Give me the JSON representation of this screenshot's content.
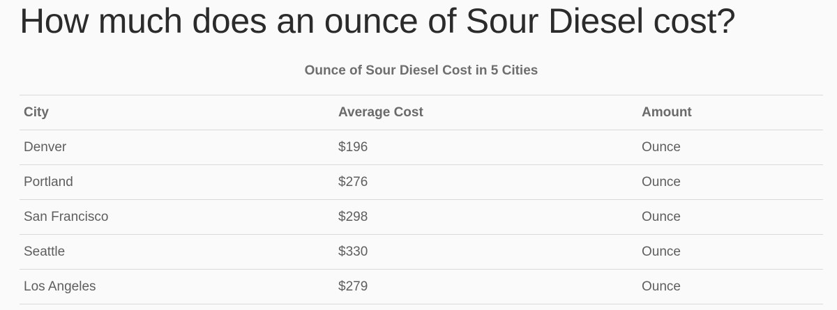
{
  "page": {
    "title": "How much does an ounce of Sour Diesel cost?"
  },
  "table": {
    "caption": "Ounce of Sour Diesel Cost in 5 Cities",
    "headers": [
      "City",
      "Average Cost",
      "Amount"
    ],
    "rows": [
      [
        "Denver",
        "$196",
        "Ounce"
      ],
      [
        "Portland",
        "$276",
        "Ounce"
      ],
      [
        "San Francisco",
        "$298",
        "Ounce"
      ],
      [
        "Seattle",
        "$330",
        "Ounce"
      ],
      [
        "Los Angeles",
        "$279",
        "Ounce"
      ]
    ]
  }
}
